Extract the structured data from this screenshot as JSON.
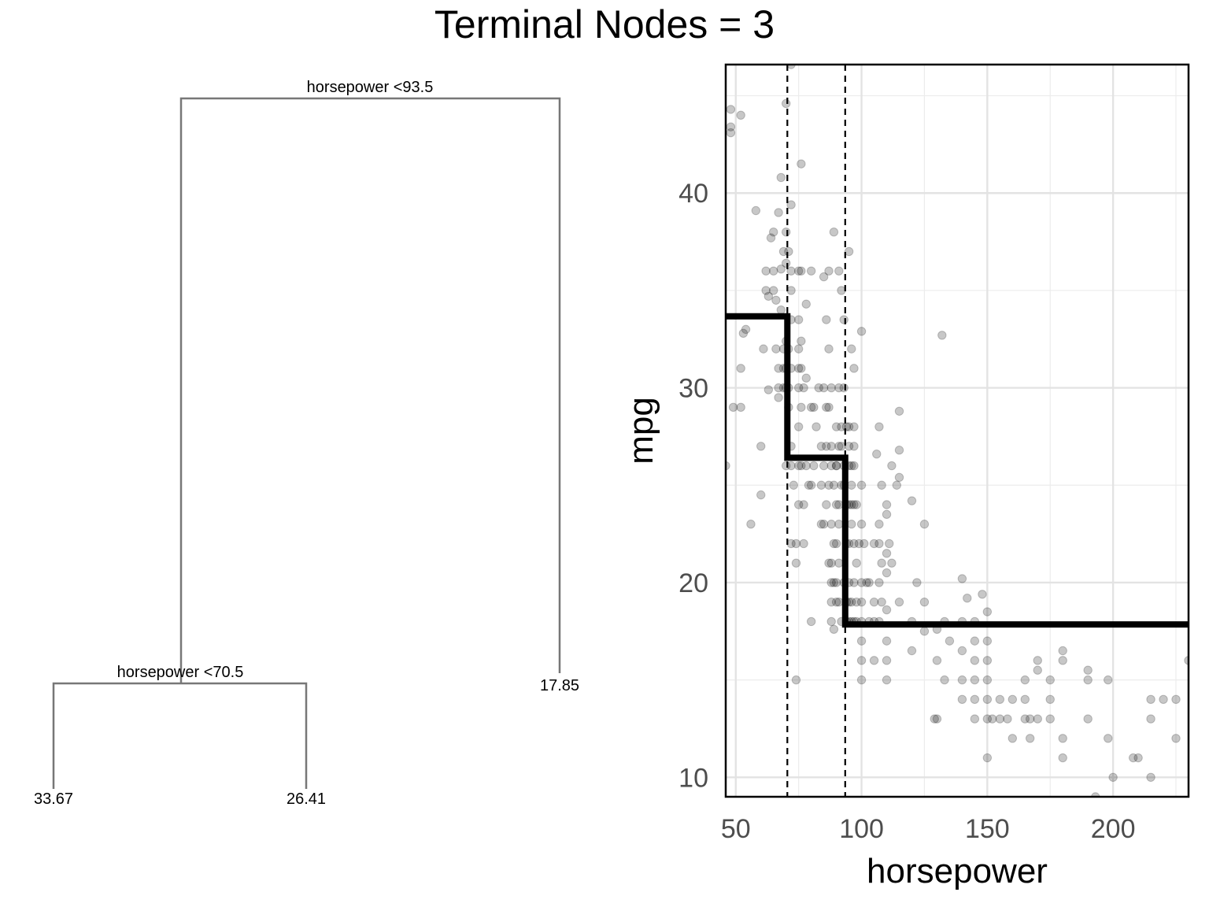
{
  "title": "Terminal Nodes = 3",
  "tree": {
    "root_split": "horsepower <93.5",
    "left_split": "horsepower <70.5",
    "leaves": [
      "33.67",
      "26.41",
      "17.85"
    ]
  },
  "chart_data": {
    "type": "scatter",
    "xlabel": "horsepower",
    "ylabel": "mpg",
    "xlim": [
      46,
      230
    ],
    "ylim": [
      9,
      46.6
    ],
    "xticks": [
      50,
      100,
      150,
      200
    ],
    "yticks": [
      10,
      20,
      30,
      40
    ],
    "grid": true,
    "point_color": "#000000",
    "point_opacity": 0.22,
    "splits": [
      70.5,
      93.5
    ],
    "step_fit": [
      {
        "x0": 46,
        "x1": 70.5,
        "y": 33.67
      },
      {
        "x0": 70.5,
        "x1": 93.5,
        "y": 26.41
      },
      {
        "x0": 93.5,
        "x1": 230,
        "y": 17.85
      }
    ],
    "points": [
      [
        46,
        26
      ],
      [
        48,
        44.3
      ],
      [
        48,
        43.4
      ],
      [
        48,
        43.1
      ],
      [
        52,
        44
      ],
      [
        49,
        29
      ],
      [
        52,
        29
      ],
      [
        52,
        31
      ],
      [
        53,
        32.8
      ],
      [
        54,
        33
      ],
      [
        56,
        23
      ],
      [
        58,
        39.1
      ],
      [
        60,
        27
      ],
      [
        60,
        24.5
      ],
      [
        61,
        32
      ],
      [
        62,
        36
      ],
      [
        62,
        35
      ],
      [
        63,
        34.7
      ],
      [
        63,
        29.9
      ],
      [
        64,
        37.7
      ],
      [
        65,
        38
      ],
      [
        65,
        36
      ],
      [
        65,
        35
      ],
      [
        66,
        34.5
      ],
      [
        66,
        32
      ],
      [
        67,
        39
      ],
      [
        67,
        31
      ],
      [
        67,
        30
      ],
      [
        67,
        29.5
      ],
      [
        68,
        40.8
      ],
      [
        68,
        36.1
      ],
      [
        68,
        34
      ],
      [
        69,
        37
      ],
      [
        69,
        32
      ],
      [
        69,
        31
      ],
      [
        69,
        30
      ],
      [
        70,
        44.6
      ],
      [
        70,
        38
      ],
      [
        70,
        36.4
      ],
      [
        70,
        32.4
      ],
      [
        70,
        31
      ],
      [
        70,
        30
      ],
      [
        70,
        26
      ],
      [
        71,
        37
      ],
      [
        71,
        32
      ],
      [
        71,
        30
      ],
      [
        71,
        29
      ],
      [
        72,
        46.6
      ],
      [
        72,
        39.4
      ],
      [
        72,
        36
      ],
      [
        72,
        35
      ],
      [
        72,
        33.5
      ],
      [
        72,
        31
      ],
      [
        72,
        27
      ],
      [
        72,
        22
      ],
      [
        72,
        26
      ],
      [
        73,
        25
      ],
      [
        74,
        15
      ],
      [
        74,
        22
      ],
      [
        74,
        21
      ],
      [
        75,
        36
      ],
      [
        75,
        33.5
      ],
      [
        75,
        32
      ],
      [
        75,
        31
      ],
      [
        75,
        30
      ],
      [
        75,
        28
      ],
      [
        75,
        26
      ],
      [
        75,
        24
      ],
      [
        76,
        41.5
      ],
      [
        76,
        36
      ],
      [
        76,
        32.4
      ],
      [
        76,
        31
      ],
      [
        76,
        29
      ],
      [
        76,
        26
      ],
      [
        77,
        30
      ],
      [
        77,
        24
      ],
      [
        77,
        22
      ],
      [
        78,
        34.3
      ],
      [
        78,
        30.5
      ],
      [
        78,
        26
      ],
      [
        79,
        25
      ],
      [
        80,
        36
      ],
      [
        80,
        29
      ],
      [
        80,
        25
      ],
      [
        80,
        18
      ],
      [
        81,
        26
      ],
      [
        81,
        29
      ],
      [
        82,
        28
      ],
      [
        83,
        30
      ],
      [
        84,
        27
      ],
      [
        84,
        25
      ],
      [
        84,
        23
      ],
      [
        85,
        35.7
      ],
      [
        85,
        30
      ],
      [
        85,
        26
      ],
      [
        85,
        23
      ],
      [
        86,
        33.5
      ],
      [
        86,
        29
      ],
      [
        86,
        27
      ],
      [
        86,
        24
      ],
      [
        87,
        36
      ],
      [
        87,
        32
      ],
      [
        87,
        29
      ],
      [
        87,
        25
      ],
      [
        87,
        21
      ],
      [
        88,
        30
      ],
      [
        88,
        27
      ],
      [
        88,
        26
      ],
      [
        88,
        23
      ],
      [
        88,
        21
      ],
      [
        88,
        19
      ],
      [
        88,
        18
      ],
      [
        88,
        20
      ],
      [
        89,
        38
      ],
      [
        89,
        25
      ],
      [
        89,
        22
      ],
      [
        89,
        20
      ],
      [
        89,
        17.6
      ],
      [
        90,
        26
      ],
      [
        90,
        24
      ],
      [
        90,
        28
      ],
      [
        90,
        26
      ],
      [
        90,
        22
      ],
      [
        90,
        20
      ],
      [
        90,
        19
      ],
      [
        91,
        36
      ],
      [
        91,
        30
      ],
      [
        91,
        27
      ],
      [
        91,
        24
      ],
      [
        91,
        23
      ],
      [
        91,
        21
      ],
      [
        91,
        19
      ],
      [
        92,
        35
      ],
      [
        92,
        28
      ],
      [
        92,
        27
      ],
      [
        92,
        25
      ],
      [
        92,
        18
      ],
      [
        93,
        33.5
      ],
      [
        93,
        30
      ],
      [
        93,
        25
      ],
      [
        93,
        20
      ],
      [
        93,
        26
      ],
      [
        94,
        28
      ],
      [
        94,
        24
      ],
      [
        94,
        22
      ],
      [
        94,
        19
      ],
      [
        94,
        18
      ],
      [
        95,
        37
      ],
      [
        95,
        28
      ],
      [
        95,
        27
      ],
      [
        95,
        26
      ],
      [
        95,
        24
      ],
      [
        95,
        22
      ],
      [
        95,
        20
      ],
      [
        95,
        19
      ],
      [
        95,
        18
      ],
      [
        96,
        32
      ],
      [
        96,
        26
      ],
      [
        96,
        25
      ],
      [
        96,
        24
      ],
      [
        96,
        23
      ],
      [
        96,
        19
      ],
      [
        96,
        18
      ],
      [
        97,
        31
      ],
      [
        97,
        28
      ],
      [
        97,
        27
      ],
      [
        97,
        26
      ],
      [
        97,
        24
      ],
      [
        97,
        22
      ],
      [
        97,
        20
      ],
      [
        97,
        18
      ],
      [
        98,
        24
      ],
      [
        98,
        21
      ],
      [
        98,
        19
      ],
      [
        98,
        18
      ],
      [
        99,
        22
      ],
      [
        100,
        25
      ],
      [
        100,
        32.9
      ],
      [
        100,
        23
      ],
      [
        100,
        18
      ],
      [
        100,
        20
      ],
      [
        100,
        19
      ],
      [
        100,
        17
      ],
      [
        100,
        15
      ],
      [
        100,
        16
      ],
      [
        101,
        22
      ],
      [
        102,
        20
      ],
      [
        103,
        18
      ],
      [
        103,
        20
      ],
      [
        105,
        16
      ],
      [
        105,
        18
      ],
      [
        105,
        19
      ],
      [
        105,
        22
      ],
      [
        106,
        26.6
      ],
      [
        107,
        28
      ],
      [
        107,
        23
      ],
      [
        107,
        22
      ],
      [
        107,
        20
      ],
      [
        107,
        18
      ],
      [
        108,
        25
      ],
      [
        108,
        21
      ],
      [
        108,
        19
      ],
      [
        110,
        24
      ],
      [
        110,
        23.5
      ],
      [
        110,
        21.5
      ],
      [
        110,
        20.5
      ],
      [
        110,
        18.6
      ],
      [
        110,
        17
      ],
      [
        110,
        16
      ],
      [
        110,
        15
      ],
      [
        111,
        22
      ],
      [
        112,
        26
      ],
      [
        112,
        21
      ],
      [
        114,
        25
      ],
      [
        115,
        28.8
      ],
      [
        115,
        25.4
      ],
      [
        115,
        26.8
      ],
      [
        115,
        19
      ],
      [
        120,
        24.2
      ],
      [
        120,
        18
      ],
      [
        120,
        16.5
      ],
      [
        122,
        20
      ],
      [
        125,
        23
      ],
      [
        125,
        19
      ],
      [
        125,
        17.5
      ],
      [
        129,
        13
      ],
      [
        130,
        16
      ],
      [
        130,
        13
      ],
      [
        130,
        17.6
      ],
      [
        132,
        32.7
      ],
      [
        133,
        15
      ],
      [
        133,
        18
      ],
      [
        135,
        17
      ],
      [
        140,
        18
      ],
      [
        140,
        16.5
      ],
      [
        140,
        14
      ],
      [
        140,
        15
      ],
      [
        140,
        20.2
      ],
      [
        142,
        19.2
      ],
      [
        145,
        18
      ],
      [
        145,
        16
      ],
      [
        145,
        13
      ],
      [
        145,
        15
      ],
      [
        145,
        14
      ],
      [
        145,
        17
      ],
      [
        148,
        19.4
      ],
      [
        150,
        18.5
      ],
      [
        150,
        17
      ],
      [
        150,
        16
      ],
      [
        150,
        15
      ],
      [
        150,
        14
      ],
      [
        150,
        13
      ],
      [
        150,
        11
      ],
      [
        152,
        13
      ],
      [
        155,
        13
      ],
      [
        155,
        14
      ],
      [
        158,
        13
      ],
      [
        160,
        14
      ],
      [
        160,
        12
      ],
      [
        165,
        15
      ],
      [
        165,
        13
      ],
      [
        165,
        14
      ],
      [
        167,
        12
      ],
      [
        167,
        13
      ],
      [
        170,
        16
      ],
      [
        170,
        15.5
      ],
      [
        170,
        13
      ],
      [
        175,
        14
      ],
      [
        175,
        13
      ],
      [
        175,
        15
      ],
      [
        180,
        16.5
      ],
      [
        180,
        16
      ],
      [
        180,
        12
      ],
      [
        180,
        11
      ],
      [
        190,
        15.5
      ],
      [
        190,
        15
      ],
      [
        190,
        13
      ],
      [
        193,
        9
      ],
      [
        198,
        15
      ],
      [
        198,
        12
      ],
      [
        200,
        10
      ],
      [
        208,
        11
      ],
      [
        210,
        11
      ],
      [
        215,
        14
      ],
      [
        215,
        13
      ],
      [
        215,
        10
      ],
      [
        220,
        14
      ],
      [
        225,
        14
      ],
      [
        225,
        12
      ],
      [
        230,
        16
      ]
    ]
  }
}
